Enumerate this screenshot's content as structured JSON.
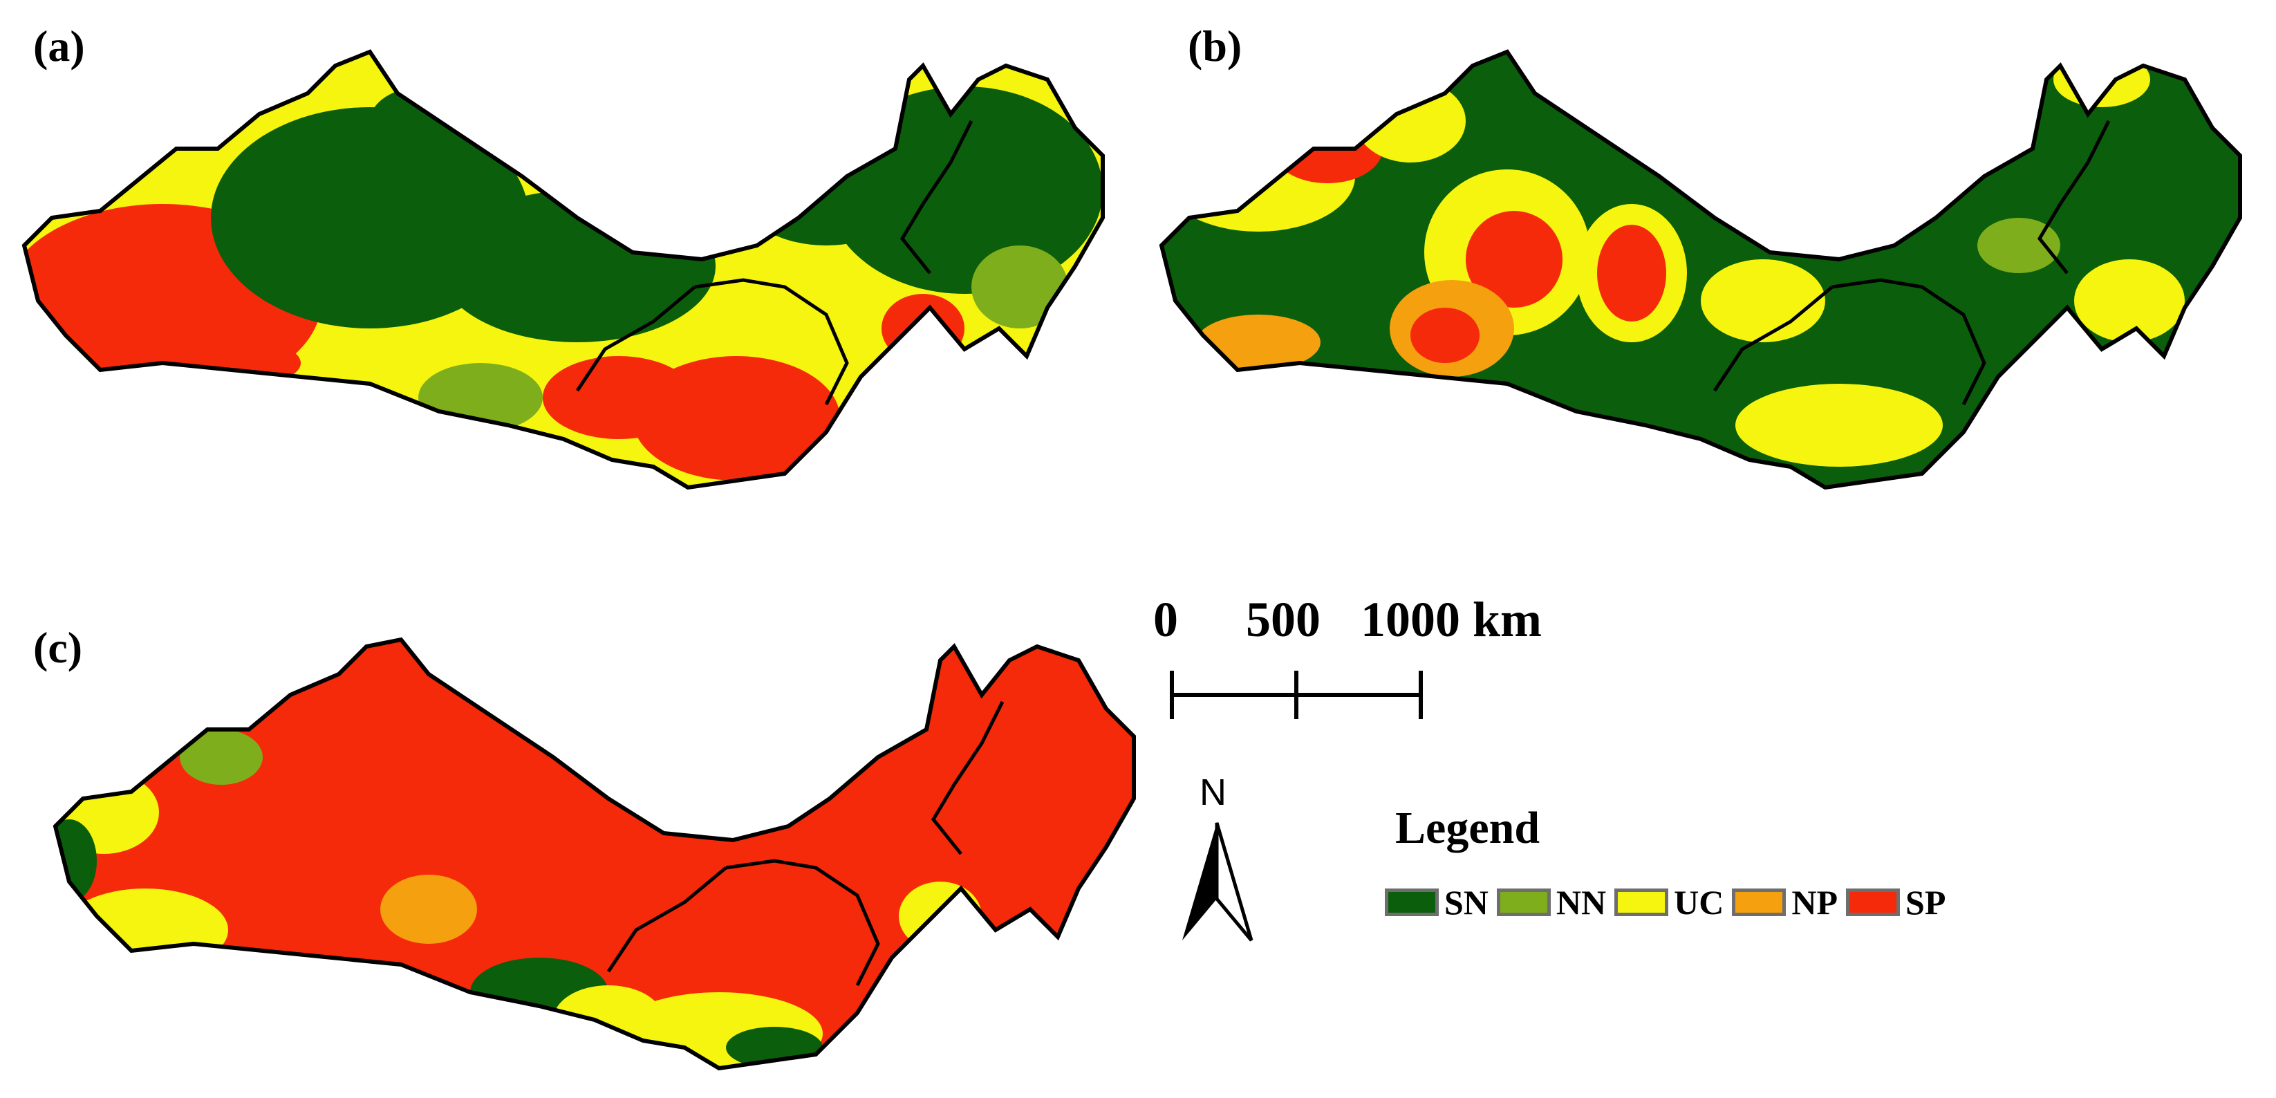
{
  "panels": [
    {
      "label": "(a)"
    },
    {
      "label": "(b)"
    },
    {
      "label": "(c)"
    }
  ],
  "scale_bar": {
    "ticks": [
      "0",
      "500",
      "1000"
    ],
    "unit": "km"
  },
  "north_arrow": {
    "label": "N"
  },
  "legend": {
    "title": "Legend",
    "items": [
      {
        "code": "SN",
        "color": "#0b5e0b"
      },
      {
        "code": "NN",
        "color": "#7fae1c"
      },
      {
        "code": "UC",
        "color": "#f5f50f"
      },
      {
        "code": "NP",
        "color": "#f5a00f"
      },
      {
        "code": "SP",
        "color": "#f52a0a"
      }
    ]
  }
}
